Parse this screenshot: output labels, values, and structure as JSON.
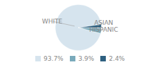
{
  "chart_data": {
    "type": "pie",
    "categories": [
      "WHITE",
      "ASIAN",
      "HISPANIC"
    ],
    "values": [
      93.7,
      3.9,
      2.4
    ],
    "value_labels": [
      "93.7%",
      "3.9%",
      "2.4%"
    ],
    "colors": [
      "#d6e4ee",
      "#7aaabb",
      "#2e6080"
    ],
    "legend": "bottom"
  }
}
